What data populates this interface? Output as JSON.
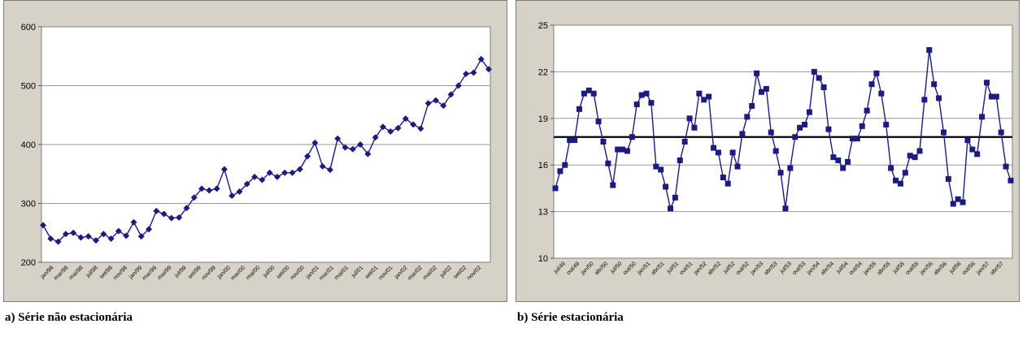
{
  "captions": {
    "a": "a) Série não estacionária",
    "b": "b) Série estacionária"
  },
  "colors": {
    "panel_background": "#d6d2c8",
    "plot_background": "#ffffff",
    "series": "#1c1c80",
    "gridline": "#9a9a9a",
    "mean_line": "#000000"
  },
  "chart_data": [
    {
      "type": "line",
      "title": "",
      "xlabel": "",
      "ylabel": "",
      "ylim": [
        200,
        600
      ],
      "yticks": [
        200,
        300,
        400,
        500,
        600
      ],
      "grid": "horizontal",
      "marker": "diamond",
      "x_tick_labels": [
        "jan/98",
        "mar/98",
        "mai/98",
        "jul/98",
        "set/98",
        "nov/98",
        "jan/99",
        "mar/99",
        "mai/99",
        "jul/99",
        "set/99",
        "nov/99",
        "jan/00",
        "mar/00",
        "mai/00",
        "jul/00",
        "set/00",
        "nov/00",
        "jan/01",
        "mar/01",
        "mai/01",
        "jul/01",
        "set/01",
        "nov/01",
        "jan/02",
        "mar/02",
        "mai/02",
        "jul/02",
        "set/02",
        "nov/02"
      ],
      "values": [
        263,
        240,
        235,
        248,
        250,
        242,
        244,
        237,
        248,
        240,
        253,
        245,
        268,
        244,
        256,
        287,
        282,
        275,
        276,
        292,
        310,
        325,
        322,
        325,
        358,
        313,
        320,
        333,
        345,
        340,
        352,
        345,
        352,
        352,
        358,
        380,
        403,
        363,
        357,
        410,
        395,
        392,
        400,
        384,
        412,
        430,
        422,
        428,
        444,
        434,
        427,
        470,
        475,
        466,
        485,
        500,
        520,
        522,
        545,
        528
      ]
    },
    {
      "type": "line",
      "title": "",
      "xlabel": "",
      "ylabel": "",
      "ylim": [
        10,
        25
      ],
      "yticks": [
        10,
        13,
        16,
        19,
        22,
        25
      ],
      "grid": "horizontal",
      "marker": "square",
      "mean_line": 17.8,
      "x_tick_labels": [
        "jul/49",
        "out/49",
        "jan/50",
        "abr/50",
        "jul/50",
        "out/50",
        "jan/51",
        "abr/51",
        "jul/51",
        "out/51",
        "jan/52",
        "abr/52",
        "jul/52",
        "out/52",
        "jan/53",
        "abr/53",
        "jul/53",
        "out/53",
        "jan/54",
        "abr/54",
        "jul/54",
        "out/54",
        "jan/55",
        "abr/55",
        "jul/55",
        "out/55",
        "jan/56",
        "abr/56",
        "jul/56",
        "out/56",
        "jan/57",
        "abr/57"
      ],
      "values": [
        14.5,
        15.6,
        16.0,
        17.6,
        17.6,
        19.6,
        20.6,
        20.8,
        20.6,
        18.8,
        17.5,
        16.1,
        14.7,
        17.0,
        17.0,
        16.9,
        17.8,
        19.9,
        20.5,
        20.6,
        20.0,
        15.9,
        15.7,
        14.6,
        13.2,
        13.9,
        16.3,
        17.5,
        19.0,
        18.4,
        20.6,
        20.2,
        20.4,
        17.1,
        16.8,
        15.2,
        14.8,
        16.8,
        15.9,
        18.0,
        19.1,
        19.8,
        21.9,
        20.7,
        20.9,
        18.1,
        16.9,
        15.5,
        13.2,
        15.8,
        17.8,
        18.4,
        18.6,
        19.4,
        22.0,
        21.6,
        21.0,
        18.3,
        16.5,
        16.3,
        15.8,
        16.2,
        17.7,
        17.7,
        18.5,
        19.5,
        21.2,
        21.9,
        20.6,
        18.6,
        15.8,
        15.0,
        14.8,
        15.5,
        16.6,
        16.5,
        16.9,
        20.2,
        23.4,
        21.2,
        20.3,
        18.1,
        15.1,
        13.5,
        13.8,
        13.6,
        17.6,
        17.0,
        16.7,
        19.1,
        21.3,
        20.4,
        20.4,
        18.1,
        15.9,
        15.0
      ]
    }
  ]
}
